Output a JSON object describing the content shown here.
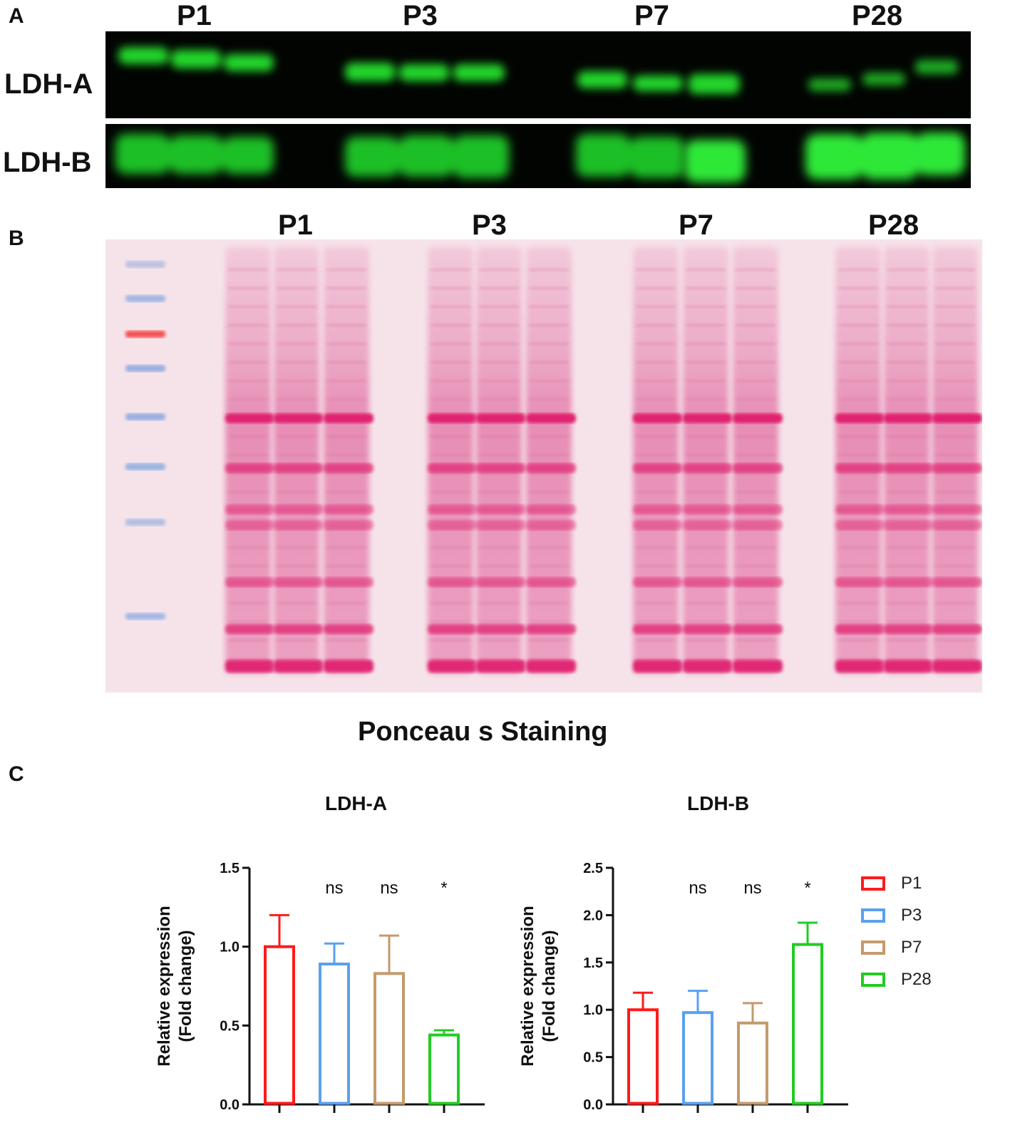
{
  "panel_a": {
    "letter": "A",
    "lanes": [
      "P1",
      "P3",
      "P7",
      "P28"
    ],
    "rows": [
      "LDH-A",
      "LDH-B"
    ]
  },
  "panel_b": {
    "letter": "B",
    "lanes": [
      "P1",
      "P3",
      "P7",
      "P28"
    ],
    "caption": "Ponceau s Staining"
  },
  "panel_c": {
    "letter": "C",
    "legend": [
      {
        "label": "P1",
        "color": "#ff1a1a"
      },
      {
        "label": "P3",
        "color": "#5aa0f0"
      },
      {
        "label": "P7",
        "color": "#c49a6c"
      },
      {
        "label": "P28",
        "color": "#22cc22"
      }
    ]
  },
  "chart_data": [
    {
      "type": "bar",
      "title": "LDH-A",
      "ylabel_line1": "Relative expression",
      "ylabel_line2": "(Fold change)",
      "categories": [
        "P1",
        "P3",
        "P7",
        "P28"
      ],
      "values": [
        1.0,
        0.89,
        0.83,
        0.44
      ],
      "errors": [
        0.2,
        0.13,
        0.24,
        0.03
      ],
      "significance": [
        "",
        "ns",
        "ns",
        "*"
      ],
      "ylim": [
        0,
        1.5
      ],
      "yticks": [
        "0.0",
        "0.5",
        "1.0",
        "1.5"
      ],
      "colors": [
        "#ff1a1a",
        "#5aa0f0",
        "#c49a6c",
        "#22cc22"
      ]
    },
    {
      "type": "bar",
      "title": "LDH-B",
      "ylabel_line1": "Relative expression",
      "ylabel_line2": "(Fold change)",
      "categories": [
        "P1",
        "P3",
        "P7",
        "P28"
      ],
      "values": [
        1.0,
        0.97,
        0.86,
        1.69
      ],
      "errors": [
        0.18,
        0.23,
        0.21,
        0.23
      ],
      "significance": [
        "",
        "ns",
        "ns",
        "*"
      ],
      "ylim": [
        0,
        2.5
      ],
      "yticks": [
        "0.0",
        "0.5",
        "1.0",
        "1.5",
        "2.0",
        "2.5"
      ],
      "colors": [
        "#ff1a1a",
        "#5aa0f0",
        "#c49a6c",
        "#22cc22"
      ]
    }
  ]
}
